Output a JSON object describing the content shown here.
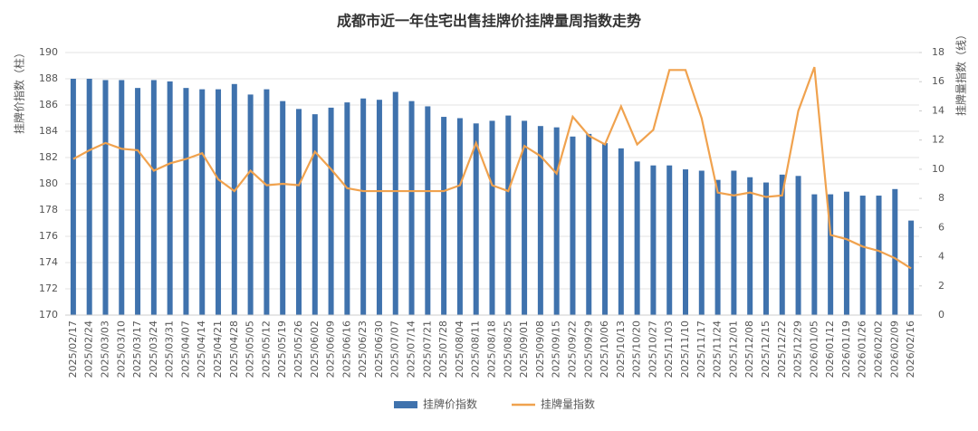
{
  "chart_data": {
    "type": "bar",
    "title": "成都市近一年住宅出售挂牌价挂牌量周指数走势",
    "y_label": "挂牌价指数（柱）",
    "y2_label": "挂牌量指数（线）",
    "categories": [
      "2025/02/17",
      "2025/02/24",
      "2025/03/03",
      "2025/03/10",
      "2025/03/17",
      "2025/03/24",
      "2025/03/31",
      "2025/04/07",
      "2025/04/14",
      "2025/04/21",
      "2025/04/28",
      "2025/05/05",
      "2025/05/12",
      "2025/05/19",
      "2025/05/26",
      "2025/06/02",
      "2025/06/09",
      "2025/06/16",
      "2025/06/23",
      "2025/06/30",
      "2025/07/07",
      "2025/07/14",
      "2025/07/21",
      "2025/07/28",
      "2025/08/04",
      "2025/08/11",
      "2025/08/18",
      "2025/08/25",
      "2025/09/01",
      "2025/09/08",
      "2025/09/15",
      "2025/09/22",
      "2025/09/29",
      "2025/10/06",
      "2025/10/13",
      "2025/10/20",
      "2025/10/27",
      "2025/11/03",
      "2025/11/10",
      "2025/11/17",
      "2025/11/24",
      "2025/12/01",
      "2025/12/08",
      "2025/12/15",
      "2025/12/22",
      "2025/12/29",
      "2026/01/05",
      "2026/01/12",
      "2026/01/19",
      "2026/01/26",
      "2026/02/02",
      "2026/02/09",
      "2026/02/16"
    ],
    "series": [
      {
        "name": "挂牌价指数",
        "type": "bar",
        "color": "#3f72ad",
        "values": [
          188.0,
          188.0,
          187.9,
          187.9,
          187.3,
          187.9,
          187.8,
          187.3,
          187.2,
          187.2,
          187.6,
          186.8,
          187.2,
          186.3,
          185.7,
          185.3,
          185.8,
          186.2,
          186.5,
          186.4,
          187.0,
          186.3,
          185.9,
          185.1,
          185.0,
          184.6,
          184.8,
          185.2,
          184.8,
          184.4,
          184.3,
          183.6,
          183.8,
          183.1,
          182.7,
          181.7,
          181.4,
          181.4,
          181.1,
          181.0,
          180.3,
          181.0,
          180.5,
          180.1,
          180.7,
          180.6,
          179.2,
          179.2,
          179.4,
          179.1,
          179.1,
          179.6,
          177.2
        ]
      },
      {
        "name": "挂牌量指数",
        "type": "line",
        "axis": "y2",
        "color": "#f0a24e",
        "values": [
          10.7,
          11.3,
          11.8,
          11.4,
          11.3,
          9.9,
          10.4,
          10.7,
          11.1,
          9.3,
          8.5,
          9.9,
          8.9,
          9.0,
          8.9,
          11.2,
          10.0,
          8.7,
          8.5,
          8.5,
          8.5,
          8.5,
          8.5,
          8.5,
          8.9,
          11.8,
          8.9,
          8.5,
          11.6,
          10.9,
          9.7,
          13.6,
          12.3,
          11.7,
          14.3,
          11.7,
          12.7,
          16.8,
          16.8,
          13.5,
          8.4,
          8.2,
          8.4,
          8.1,
          8.2,
          14.0,
          17.0,
          5.5,
          5.2,
          4.7,
          4.4,
          3.9,
          3.2
        ]
      }
    ],
    "ylim": [
      170,
      190
    ],
    "yticks": [
      170,
      172,
      174,
      176,
      178,
      180,
      182,
      184,
      186,
      188,
      190
    ],
    "y2lim": [
      0,
      18
    ],
    "y2ticks": [
      0,
      2,
      4,
      6,
      8,
      10,
      12,
      14,
      16,
      18
    ],
    "legend": "bottom"
  }
}
